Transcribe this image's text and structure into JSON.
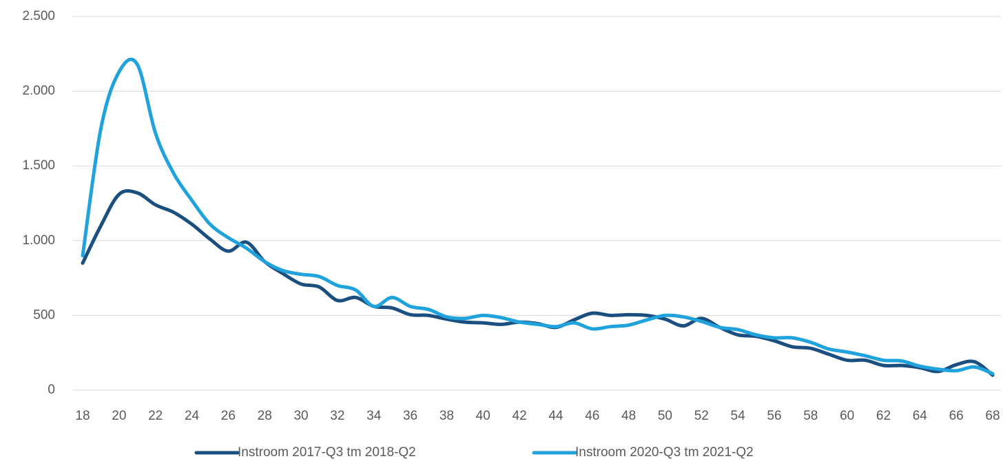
{
  "chart_data": {
    "type": "line",
    "x": [
      18,
      19,
      20,
      21,
      22,
      23,
      24,
      25,
      26,
      27,
      28,
      29,
      30,
      31,
      32,
      33,
      34,
      35,
      36,
      37,
      38,
      39,
      40,
      41,
      42,
      43,
      44,
      45,
      46,
      47,
      48,
      49,
      50,
      51,
      52,
      53,
      54,
      55,
      56,
      57,
      58,
      59,
      60,
      61,
      62,
      63,
      64,
      65,
      66,
      67,
      68
    ],
    "series": [
      {
        "name": "Instroom 2017-Q3 tm 2018-Q2",
        "color": "#1b4f7f",
        "values": [
          850,
          1100,
          1310,
          1320,
          1240,
          1190,
          1110,
          1010,
          930,
          990,
          860,
          780,
          710,
          690,
          600,
          620,
          560,
          550,
          505,
          500,
          475,
          455,
          450,
          440,
          455,
          445,
          420,
          470,
          515,
          500,
          505,
          500,
          475,
          430,
          480,
          420,
          370,
          360,
          330,
          290,
          280,
          240,
          200,
          200,
          165,
          165,
          150,
          125,
          170,
          190,
          100
        ]
      },
      {
        "name": "Instroom 2020-Q3 tm 2021-Q2",
        "color": "#20a2dc",
        "values": [
          900,
          1750,
          2130,
          2180,
          1720,
          1450,
          1270,
          1110,
          1020,
          950,
          860,
          800,
          775,
          760,
          700,
          670,
          560,
          620,
          560,
          540,
          490,
          480,
          500,
          485,
          455,
          440,
          425,
          450,
          410,
          425,
          435,
          470,
          500,
          490,
          460,
          420,
          405,
          370,
          350,
          350,
          320,
          275,
          255,
          230,
          200,
          195,
          160,
          140,
          130,
          155,
          110
        ]
      }
    ],
    "xlim": [
      18,
      68
    ],
    "xticks": [
      18,
      20,
      22,
      24,
      26,
      28,
      30,
      32,
      34,
      36,
      38,
      40,
      42,
      44,
      46,
      48,
      50,
      52,
      54,
      56,
      58,
      60,
      62,
      64,
      66,
      68
    ],
    "ylim": [
      0,
      2500
    ],
    "yticks": [
      0,
      500,
      {
        "value": 1000,
        "label": "1.000"
      },
      {
        "value": 1500,
        "label": "1.500"
      },
      {
        "value": 2000,
        "label": "2.000"
      },
      {
        "value": 2500,
        "label": "2.500"
      }
    ],
    "grid": true,
    "legend": "bottom"
  }
}
